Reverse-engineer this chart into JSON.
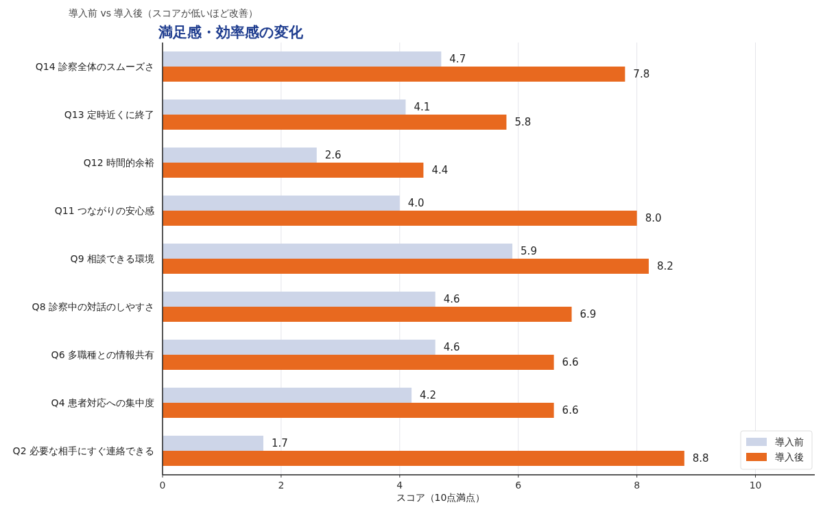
{
  "chart_data": {
    "type": "bar",
    "orientation": "horizontal",
    "title": "満足感・効率感の変化",
    "subtitle": "導入前 vs 導入後（スコアが低いほど改善）",
    "xlabel": "スコア（10点満点）",
    "categories": [
      "Q14 診察全体のスムーズさ",
      "Q13 定時近くに終了",
      "Q12 時間的余裕",
      "Q11 つながりの安心感",
      "Q9 相談できる環境",
      "Q8 診察中の対話のしやすさ",
      "Q6 多職種との情報共有",
      "Q4 患者対応への集中度",
      "Q2 必要な相手にすぐ連絡できる"
    ],
    "series": [
      {
        "name": "導入前",
        "color": "#cdd5e8",
        "values": [
          4.7,
          4.1,
          2.6,
          4.0,
          5.9,
          4.6,
          4.6,
          4.2,
          1.7
        ],
        "value_labels": [
          "4.7",
          "4.1",
          "2.6",
          "4.0",
          "5.9",
          "4.6",
          "4.6",
          "4.2",
          "1.7"
        ]
      },
      {
        "name": "導入後",
        "color": "#e8691f",
        "values": [
          7.8,
          5.8,
          4.4,
          8.0,
          8.2,
          6.9,
          6.6,
          6.6,
          8.8
        ],
        "value_labels": [
          "7.8",
          "5.8",
          "4.4",
          "8.0",
          "8.2",
          "6.9",
          "6.6",
          "6.6",
          "8.8"
        ]
      }
    ],
    "xlim": [
      0,
      11
    ],
    "xticks": [
      0,
      2,
      4,
      6,
      8,
      10
    ],
    "grid": "x",
    "legend": "bottom right"
  }
}
